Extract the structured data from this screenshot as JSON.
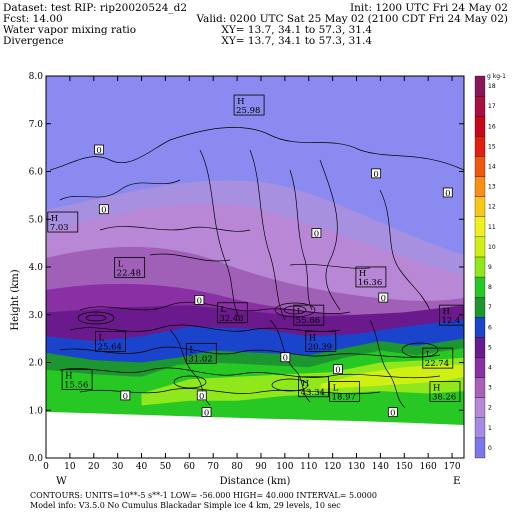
{
  "header": {
    "dataset": "Dataset: test   RIP: rip20020524_d2",
    "init": "Init: 1200 UTC Fri 24 May 02",
    "fcst": "Fcst:    14.00",
    "valid": "Valid: 0200 UTC Sat 25 May 02 (2100 CDT Fri 24 May 02)",
    "field1": "Water vapor mixing ratio",
    "field1_xy": "XY=   13.7, 34.1  to   57.3, 31.4",
    "field2": "Divergence",
    "field2_xy": "XY=   13.7, 34.1  to   57.3, 31.4"
  },
  "footer": {
    "contours": "CONTOURS:   UNITS=10**-5 s**-1    LOW=  -56.000          HIGH=   40.000          INTERVAL=    5.0000",
    "model": "Model info: V3.5.0 No Cumulus Blackadar  Simple ice      4 km,   29 levels,    10 sec"
  },
  "colors": {
    "c0": "#7a78e8",
    "c1": "#a48ce0",
    "c2": "#b888d6",
    "c3": "#a860b8",
    "c4": "#8a30a4",
    "c5": "#6a1a8c",
    "c6": "#1a44cc",
    "c7": "#1c9630",
    "c8": "#28c824",
    "c9": "#90e81c",
    "c10": "#d0f014",
    "c11": "#f0f020",
    "c12": "#f8c818",
    "c13": "#f89014",
    "c14": "#f05810",
    "c15": "#e02010",
    "c16": "#c80818",
    "c17": "#a81040",
    "c18": "#881858"
  },
  "chart_data": {
    "type": "heatmap",
    "title": "Water vapor mixing ratio",
    "xlabel": "Distance (km)",
    "ylabel": "Height (km)",
    "xlim": [
      0,
      175
    ],
    "ylim": [
      0,
      8
    ],
    "x_ticks": [
      "0",
      "10",
      "20",
      "30",
      "40",
      "50",
      "60",
      "70",
      "80",
      "90",
      "100",
      "110",
      "120",
      "130",
      "140",
      "150",
      "160",
      "170"
    ],
    "y_ticks": [
      "0.0",
      "1.0",
      "2.0",
      "3.0",
      "4.0",
      "5.0",
      "6.0",
      "7.0",
      "8.0"
    ],
    "left_end": "W",
    "right_end": "E",
    "colorbar": {
      "unit": "g kg-1",
      "min": 0,
      "max": 19,
      "labels": [
        "0",
        "1",
        "2",
        "3",
        "4",
        "5",
        "6",
        "7",
        "8",
        "9",
        "10",
        "11",
        "12",
        "13",
        "14",
        "15",
        "16",
        "17",
        "18"
      ]
    },
    "bands": [
      {
        "level": 5,
        "x": [
          0,
          30,
          60,
          90,
          110,
          130,
          150,
          175
        ],
        "bottom": [
          0,
          0,
          0,
          0,
          0,
          0,
          0,
          0
        ],
        "top": [
          3.05,
          3.15,
          3.2,
          3.05,
          2.95,
          3.0,
          3.05,
          3.2
        ]
      },
      {
        "level": 6,
        "x": [
          0,
          20,
          40,
          60,
          90,
          110,
          130,
          150,
          175
        ],
        "bottom": [
          0,
          0,
          0,
          0,
          0,
          0,
          0,
          0,
          0
        ],
        "top": [
          2.55,
          2.45,
          2.55,
          2.75,
          2.7,
          2.55,
          2.6,
          2.75,
          2.9
        ]
      },
      {
        "level": 7,
        "x": [
          0,
          20,
          40,
          55,
          70,
          90,
          110,
          125,
          140,
          155,
          175
        ],
        "bottom": [
          0,
          0,
          0,
          0,
          0,
          0,
          0,
          0,
          0,
          0,
          0
        ],
        "top": [
          2.2,
          2.05,
          2.0,
          2.1,
          2.25,
          2.2,
          2.15,
          2.3,
          2.45,
          2.35,
          2.5
        ]
      },
      {
        "level": 8,
        "x": [
          0,
          20,
          40,
          55,
          70,
          90,
          110,
          125,
          140,
          155,
          175
        ],
        "bottom": [
          0,
          0,
          0,
          0,
          0,
          0,
          0,
          0,
          0,
          0,
          0
        ],
        "top": [
          1.85,
          1.75,
          1.7,
          1.95,
          2.0,
          1.95,
          1.9,
          2.1,
          2.25,
          2.15,
          2.3
        ]
      },
      {
        "level": 9,
        "x": [
          40,
          60,
          80,
          100,
          120,
          140,
          160,
          175
        ],
        "bottom": [
          1.1,
          1.2,
          1.2,
          1.3,
          1.35,
          1.4,
          1.35,
          1.4
        ],
        "top": [
          1.35,
          1.65,
          1.7,
          1.75,
          1.8,
          2.0,
          2.05,
          2.1
        ]
      },
      {
        "level": 10,
        "x": [
          115,
          135,
          150,
          165,
          175
        ],
        "bottom": [
          1.45,
          1.5,
          1.55,
          1.6,
          1.7
        ],
        "top": [
          1.55,
          1.8,
          1.9,
          1.95,
          1.95
        ]
      }
    ],
    "labels": [
      {
        "type": "H",
        "value": "25.98",
        "x": 80,
        "y": 7.35
      },
      {
        "type": "H",
        "value": "7.03",
        "x": 2,
        "y": 4.9
      },
      {
        "type": "L",
        "value": "22.48",
        "x": 30,
        "y": 3.95
      },
      {
        "type": "H",
        "value": "16.36",
        "x": 131,
        "y": 3.75
      },
      {
        "type": "L",
        "value": "32.43",
        "x": 73,
        "y": 3.0
      },
      {
        "type": "L",
        "value": "55.66",
        "x": 105,
        "y": 2.95
      },
      {
        "type": "H",
        "value": "12.4",
        "x": 166,
        "y": 2.95
      },
      {
        "type": "L",
        "value": "25.64",
        "x": 22,
        "y": 2.4
      },
      {
        "type": "H",
        "value": "20.39",
        "x": 110,
        "y": 2.4
      },
      {
        "type": "L",
        "value": "22.74",
        "x": 159,
        "y": 2.05
      },
      {
        "type": "L",
        "value": "31.02",
        "x": 60,
        "y": 2.15
      },
      {
        "type": "H",
        "value": "15.56",
        "x": 8,
        "y": 1.6
      },
      {
        "type": "H",
        "value": "43.34",
        "x": 107,
        "y": 1.45
      },
      {
        "type": "L",
        "value": "18.97",
        "x": 120,
        "y": 1.35
      },
      {
        "type": "H",
        "value": "38.26",
        "x": 162,
        "y": 1.35
      }
    ],
    "zero_labels": [
      {
        "value": "0",
        "x": 22,
        "y": 6.45
      },
      {
        "value": "0",
        "x": 24,
        "y": 5.2
      },
      {
        "value": "0",
        "x": 138,
        "y": 5.95
      },
      {
        "value": "0",
        "x": 113,
        "y": 4.7
      },
      {
        "value": "0",
        "x": 168,
        "y": 5.55
      },
      {
        "value": "0",
        "x": 141,
        "y": 3.35
      },
      {
        "value": "0",
        "x": 64,
        "y": 3.3
      },
      {
        "value": "0",
        "x": 100,
        "y": 2.1
      },
      {
        "value": "0",
        "x": 122,
        "y": 1.85
      },
      {
        "value": "0",
        "x": 33,
        "y": 1.3
      },
      {
        "value": "0",
        "x": 65,
        "y": 1.3
      },
      {
        "value": "0",
        "x": 67,
        "y": 0.95
      },
      {
        "value": "0",
        "x": 145,
        "y": 0.95
      }
    ]
  }
}
